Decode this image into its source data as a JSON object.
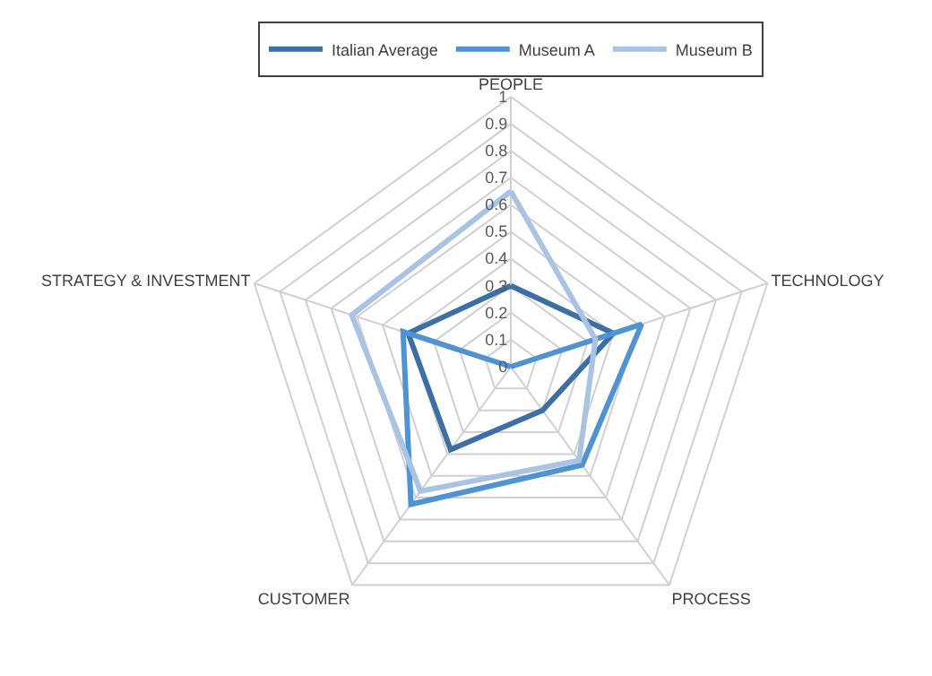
{
  "chart_data": {
    "type": "radar",
    "categories": [
      "PEOPLE",
      "TECHNOLOGY",
      "PROCESS",
      "CUSTOMER",
      "STRATEGY & INVESTMENT"
    ],
    "series": [
      {
        "name": "Italian Average",
        "color": "#3b6fa6",
        "values": [
          0.3,
          0.4,
          0.2,
          0.38,
          0.4
        ]
      },
      {
        "name": "Museum A",
        "color": "#4f93d2",
        "values": [
          0,
          0.51,
          0.45,
          0.63,
          0.42
        ]
      },
      {
        "name": "Museum B",
        "color": "#a8c3e4",
        "values": [
          0.65,
          0.33,
          0.43,
          0.57,
          0.62
        ]
      }
    ],
    "ylim": [
      0,
      1
    ],
    "yticks": [
      0,
      0.1,
      0.2,
      0.3,
      0.4,
      0.5,
      0.6,
      0.7,
      0.8,
      0.9,
      1
    ],
    "grid": true,
    "legend": "top",
    "marker": "none"
  }
}
